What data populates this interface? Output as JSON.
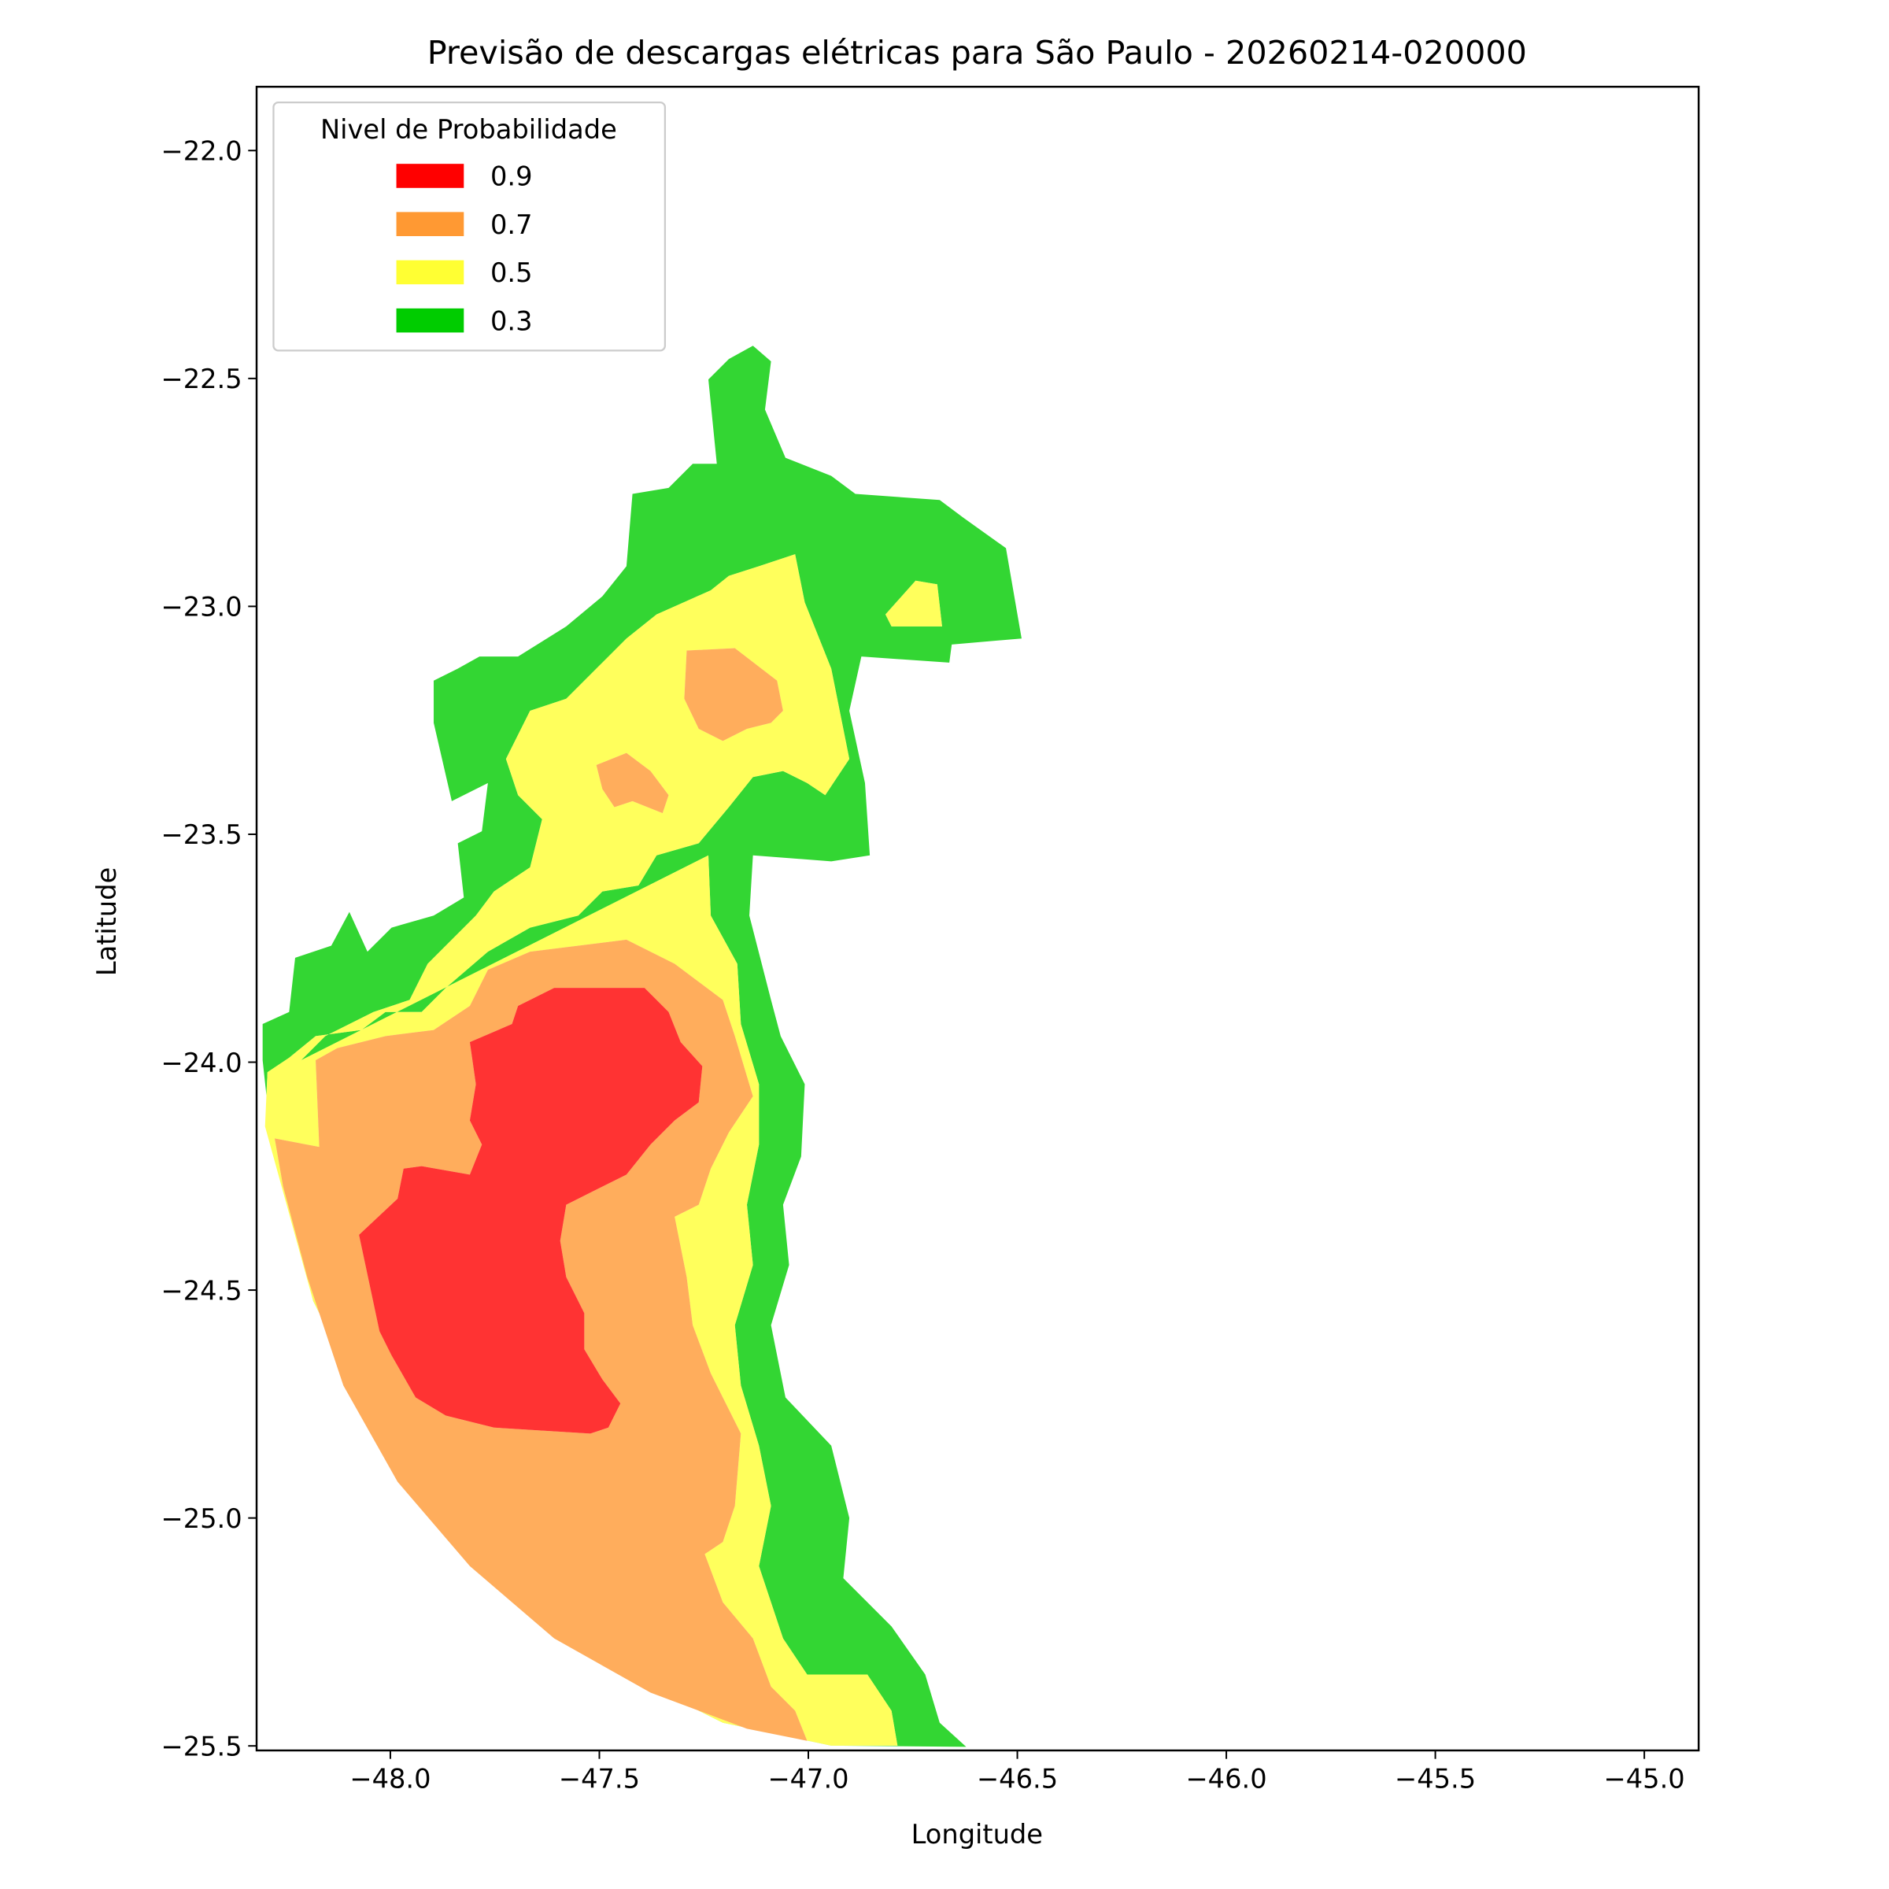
{
  "chart_data": {
    "type": "contourf",
    "title": "Previsão de descargas elétricas para São Paulo - 20260214-020000",
    "x_label": "Longitude",
    "y_label": "Latitude",
    "xlim": [
      -48.32,
      -44.87
    ],
    "ylim": [
      -25.51,
      -21.86
    ],
    "xticks": [
      {
        "value": -48.0,
        "label": "−48.0"
      },
      {
        "value": -47.5,
        "label": "−47.5"
      },
      {
        "value": -47.0,
        "label": "−47.0"
      },
      {
        "value": -46.5,
        "label": "−46.5"
      },
      {
        "value": -46.0,
        "label": "−46.0"
      },
      {
        "value": -45.5,
        "label": "−45.5"
      },
      {
        "value": -45.0,
        "label": "−45.0"
      }
    ],
    "yticks": [
      {
        "value": -22.0,
        "label": "−22.0"
      },
      {
        "value": -22.5,
        "label": "−22.5"
      },
      {
        "value": -23.0,
        "label": "−23.0"
      },
      {
        "value": -23.5,
        "label": "−23.5"
      },
      {
        "value": -24.0,
        "label": "−24.0"
      },
      {
        "value": -24.5,
        "label": "−24.5"
      },
      {
        "value": -25.0,
        "label": "−25.0"
      },
      {
        "value": -25.5,
        "label": "−25.5"
      }
    ],
    "legend_title": "Nivel de Probabilidade",
    "legend_position": "upper left",
    "levels": [
      0.9,
      0.7,
      0.5,
      0.3
    ],
    "colors": [
      "#ff0000",
      "#ff9933",
      "#ffff33",
      "#00cc00"
    ],
    "alpha": 0.8
  }
}
